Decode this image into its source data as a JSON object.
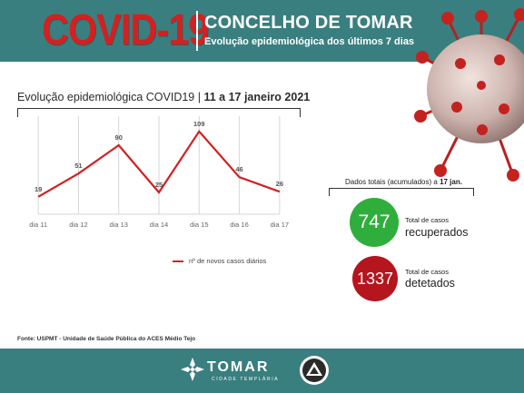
{
  "header": {
    "covid_title": "COVID-19",
    "title": "CONCELHO DE TOMAR",
    "subtitle": "Evolução epidemiológica dos últimos 7 dias"
  },
  "chart_heading": {
    "prefix": "Evolução epidemiológica COVID19",
    "separator": "|",
    "period": "11 a 17 janeiro 2021"
  },
  "chart_data": {
    "type": "line",
    "title": "Evolução epidemiológica COVID19 | 11 a 17 janeiro 2021",
    "categories": [
      "dia 11",
      "dia 12",
      "dia 13",
      "dia 14",
      "dia 15",
      "dia 16",
      "dia 17"
    ],
    "series": [
      {
        "name": "nº de novos casos diários",
        "values": [
          19,
          51,
          90,
          25,
          109,
          46,
          26
        ]
      }
    ],
    "ylim": [
      0,
      115
    ],
    "grid": "vertical",
    "legend_position": "bottom",
    "colors": {
      "line": "#d42020",
      "grid": "#d6d6d6",
      "labels": "#555555"
    }
  },
  "totals": {
    "label_prefix": "Dados totais (acumulados) a",
    "label_date": "17 jan.",
    "recovered": {
      "value": "747",
      "small": "Total de casos",
      "big": "recuperados",
      "color": "#2fae3b"
    },
    "detected": {
      "value": "1337",
      "small": "Total de casos",
      "big": "detetados",
      "color": "#b5151d"
    }
  },
  "source": "Fonte: USPMT - Unidade de Saúde Pública do ACES Médio Tejo",
  "footer": {
    "brand_name": "TOMAR",
    "brand_sub": "CIDADE TEMPLÁRIA"
  },
  "colors": {
    "header_bg": "#3a7f80",
    "title_red": "#d42020"
  },
  "icons": {
    "virus": "coronavirus-illustration",
    "tomar_logo": "templar-cross-emblem",
    "protection_logo": "civil-protection-triangle-emblem"
  }
}
